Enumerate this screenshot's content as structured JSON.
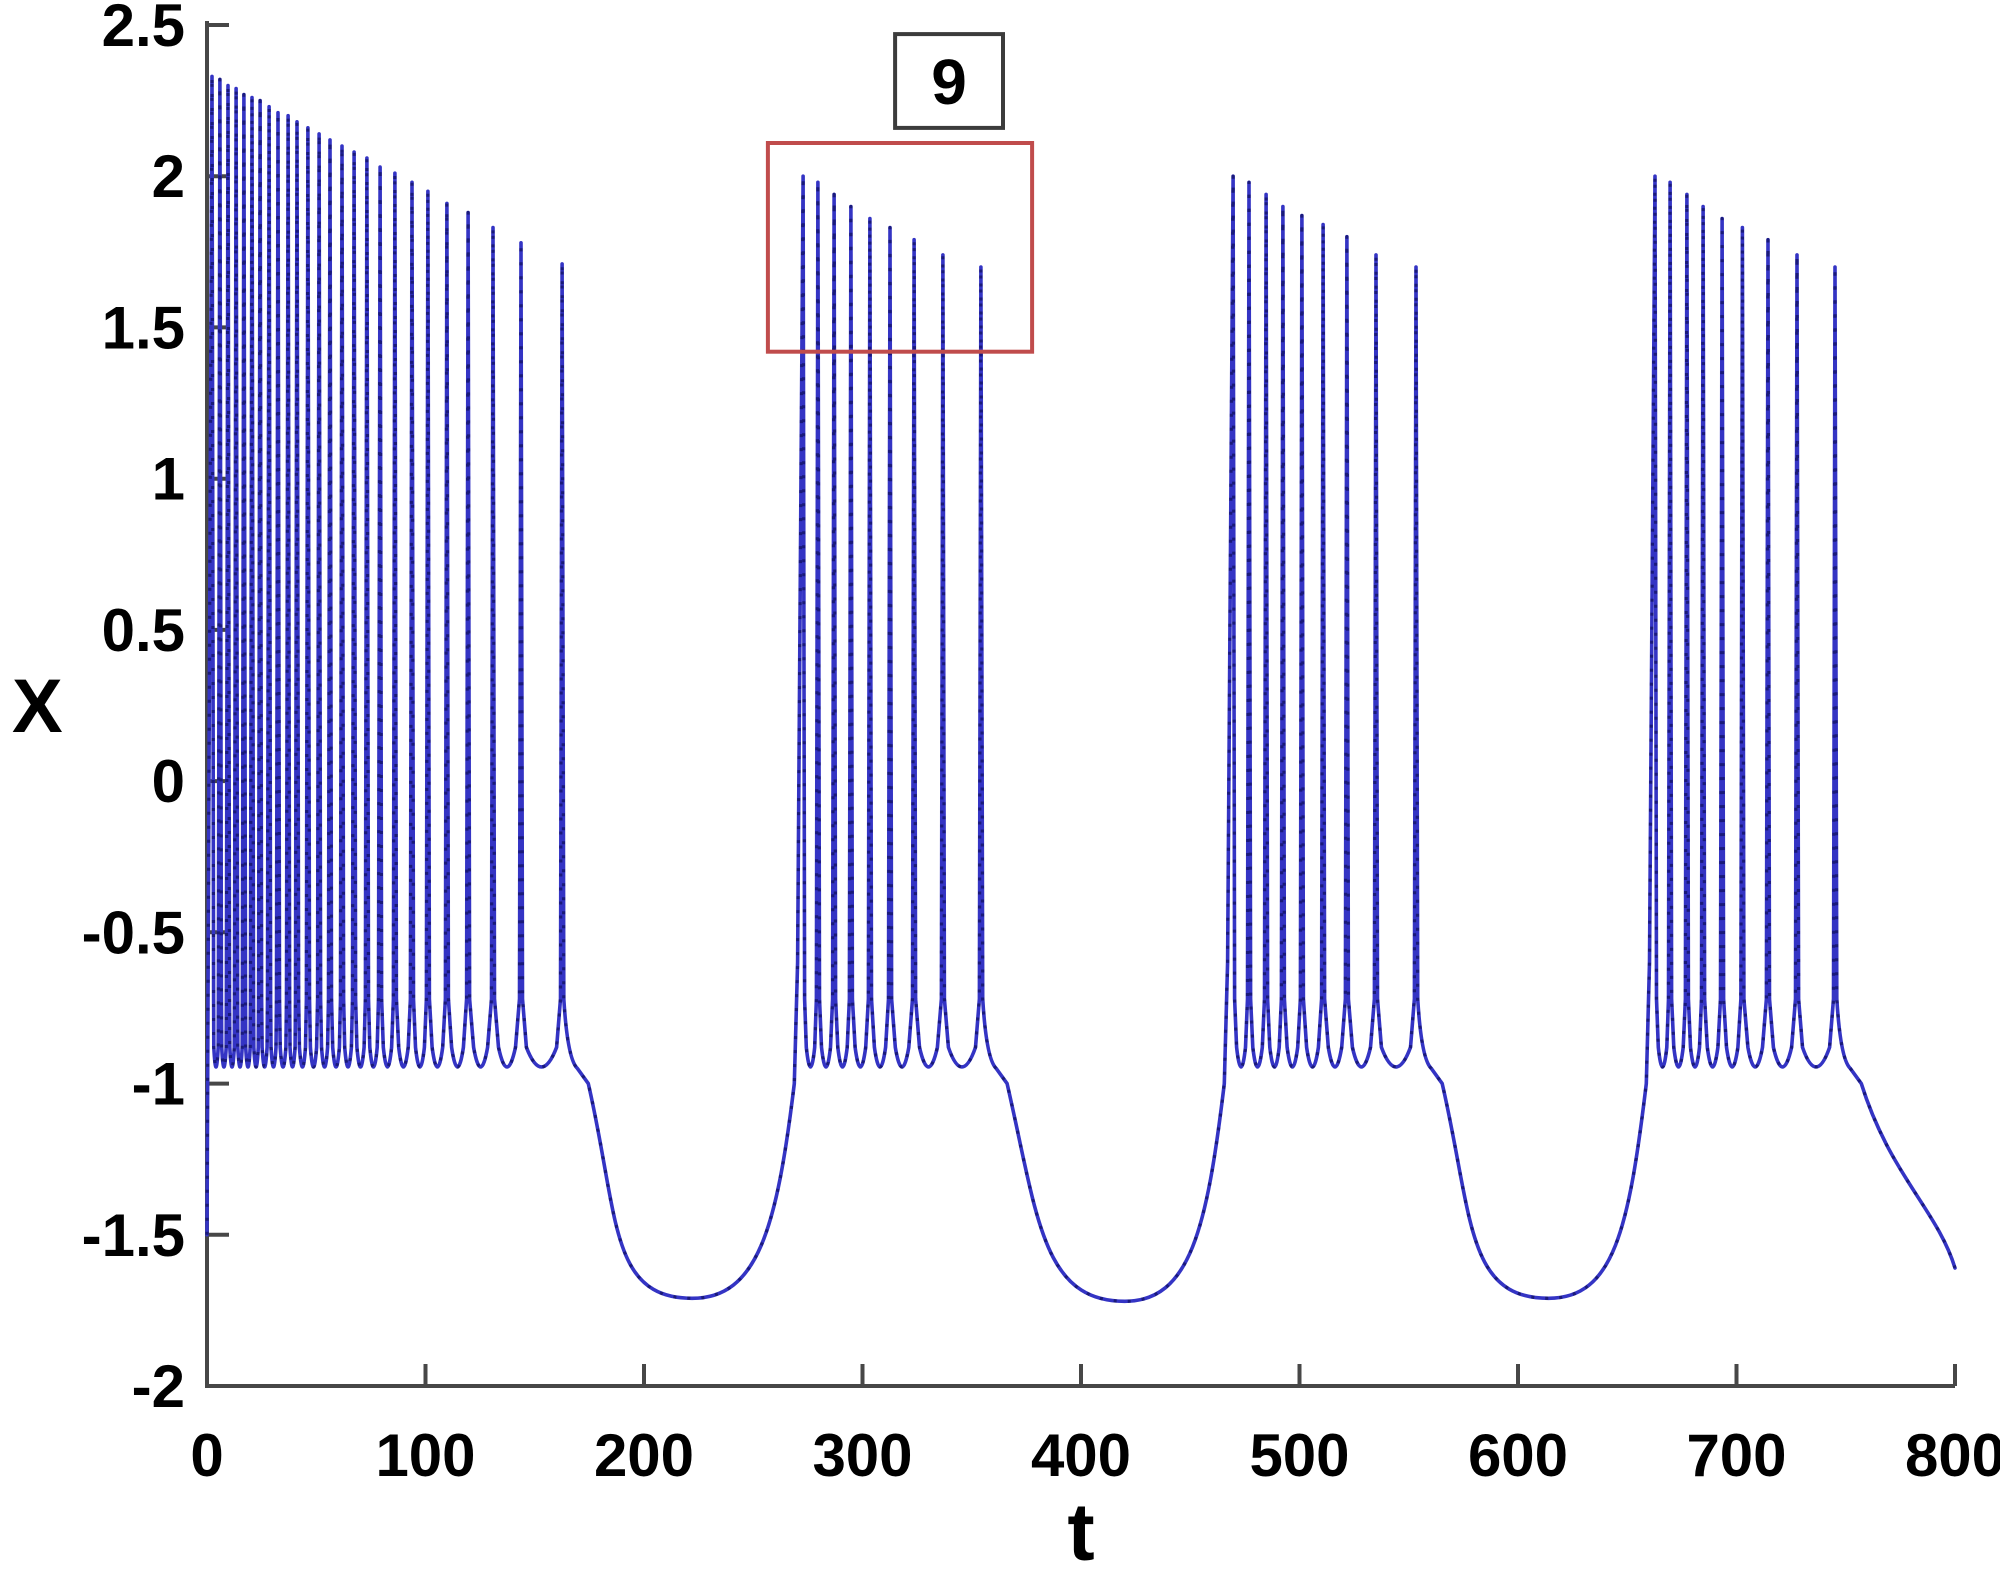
{
  "figure": {
    "background": "#ffffff",
    "title": ""
  },
  "chart_data": {
    "type": "line",
    "title": "",
    "xlabel": "t",
    "ylabel": "X",
    "xlim": [
      0,
      800
    ],
    "ylim": [
      -2,
      2.5
    ],
    "xticks": [
      "0",
      "100",
      "200",
      "300",
      "400",
      "500",
      "600",
      "700",
      "800"
    ],
    "yticks": [
      "2.5",
      "2",
      "1.5",
      "1",
      "0.5",
      "0",
      "-0.5",
      "-1",
      "-1.5",
      "-2"
    ],
    "grid": false,
    "legend": null,
    "line_color": "#3434c4",
    "line_speckle_color": "#16166e",
    "axis_color": "#474747",
    "tick_length": 22,
    "description": "Membrane-potential-like bursting time series: four square-wave bursts of spikes with decaying spike amplitude, separated by slow quiescent dips to about -1.7. The second burst (9 spikes) is outlined by a red rectangle labeled 9.",
    "start": {
      "t": 0,
      "x": -1.5
    },
    "spike_trough_x": -0.95,
    "bursts": [
      {
        "spike_t": [
          2.3,
          5.9,
          9.6,
          13.3,
          16.9,
          20.6,
          24.3,
          28.4,
          32.5,
          37.1,
          41.2,
          46.2,
          51.3,
          56.3,
          61.8,
          67.3,
          73.2,
          79.2,
          86.0,
          93.8,
          101.1,
          109.8,
          119.5,
          130.9,
          143.7,
          162.5
        ],
        "spike_peak": [
          2.33,
          2.32,
          2.3,
          2.29,
          2.27,
          2.26,
          2.25,
          2.23,
          2.21,
          2.2,
          2.18,
          2.16,
          2.14,
          2.12,
          2.1,
          2.08,
          2.06,
          2.03,
          2.01,
          1.98,
          1.95,
          1.91,
          1.88,
          1.83,
          1.78,
          1.71
        ]
      },
      {
        "spike_t": [
          272.8,
          279.6,
          287.0,
          294.7,
          303.4,
          312.6,
          323.6,
          336.8,
          354.2
        ],
        "spike_peak": [
          2.0,
          1.98,
          1.94,
          1.9,
          1.86,
          1.83,
          1.79,
          1.74,
          1.7
        ]
      },
      {
        "spike_t": [
          469.6,
          476.9,
          484.7,
          492.4,
          501.1,
          510.8,
          521.7,
          535.0,
          553.3
        ],
        "spike_peak": [
          2.0,
          1.98,
          1.94,
          1.9,
          1.87,
          1.84,
          1.8,
          1.74,
          1.7
        ]
      },
      {
        "spike_t": [
          662.7,
          669.6,
          677.3,
          684.7,
          693.4,
          702.7,
          714.4,
          727.7,
          745.1
        ],
        "spike_peak": [
          2.0,
          1.98,
          1.94,
          1.9,
          1.86,
          1.83,
          1.79,
          1.74,
          1.7
        ]
      }
    ],
    "dips": [
      {
        "t": 222,
        "x": -1.71
      },
      {
        "t": 420,
        "x": -1.72
      },
      {
        "t": 614,
        "x": -1.71
      }
    ],
    "tail": {
      "t": 800,
      "x": -1.61
    },
    "annotation": {
      "label": "9",
      "spike_count_of_boxed_burst": 9,
      "region_box": {
        "t": [
          256.7,
          377.6
        ],
        "x": [
          1.42,
          2.11
        ],
        "color": "#c04c4c",
        "stroke_width": 4
      },
      "label_box": {
        "t": [
          314.9,
          364.3
        ],
        "x": [
          2.16,
          2.47
        ],
        "color": "#3c3c3c",
        "stroke_width": 4,
        "fill": "#ffffff"
      }
    }
  }
}
